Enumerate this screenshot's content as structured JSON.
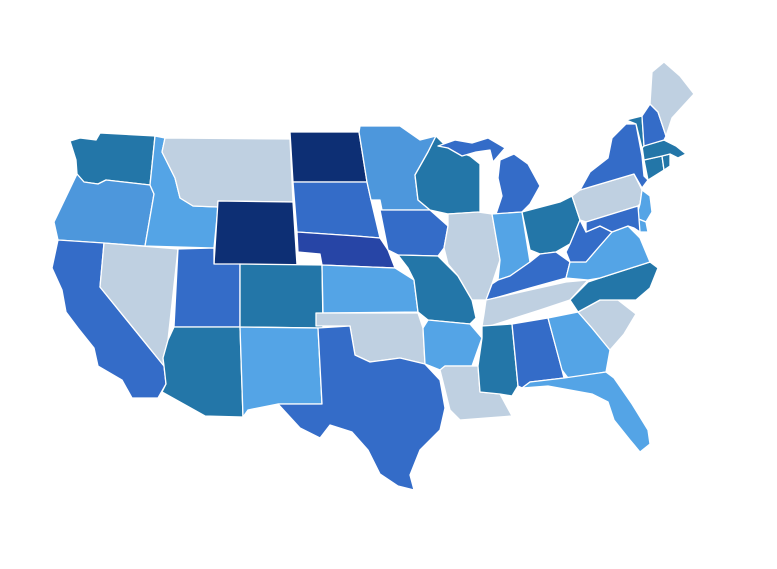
{
  "map": {
    "type": "choropleth",
    "region": "United States",
    "palette": {
      "navy": "#0d2f74",
      "indigo": "#2745a6",
      "blue": "#346cc8",
      "teal": "#2376a8",
      "medium": "#4d97dc",
      "light": "#54a4e6",
      "gray": "#bfd0e1"
    },
    "states": [
      {
        "id": "WA",
        "fill": "teal"
      },
      {
        "id": "OR",
        "fill": "medium"
      },
      {
        "id": "CA",
        "fill": "blue"
      },
      {
        "id": "ID",
        "fill": "light"
      },
      {
        "id": "NV",
        "fill": "gray"
      },
      {
        "id": "MT",
        "fill": "gray"
      },
      {
        "id": "WY",
        "fill": "navy"
      },
      {
        "id": "UT",
        "fill": "blue"
      },
      {
        "id": "AZ",
        "fill": "teal"
      },
      {
        "id": "CO",
        "fill": "teal"
      },
      {
        "id": "NM",
        "fill": "light"
      },
      {
        "id": "ND",
        "fill": "navy"
      },
      {
        "id": "SD",
        "fill": "blue"
      },
      {
        "id": "NE",
        "fill": "indigo"
      },
      {
        "id": "KS",
        "fill": "light"
      },
      {
        "id": "OK",
        "fill": "gray"
      },
      {
        "id": "TX",
        "fill": "blue"
      },
      {
        "id": "MN",
        "fill": "medium"
      },
      {
        "id": "IA",
        "fill": "blue"
      },
      {
        "id": "MO",
        "fill": "teal"
      },
      {
        "id": "AR",
        "fill": "light"
      },
      {
        "id": "LA",
        "fill": "gray"
      },
      {
        "id": "WI",
        "fill": "teal"
      },
      {
        "id": "IL",
        "fill": "gray"
      },
      {
        "id": "MI",
        "fill": "blue"
      },
      {
        "id": "IN",
        "fill": "light"
      },
      {
        "id": "OH",
        "fill": "teal"
      },
      {
        "id": "KY",
        "fill": "blue"
      },
      {
        "id": "TN",
        "fill": "gray"
      },
      {
        "id": "MS",
        "fill": "teal"
      },
      {
        "id": "AL",
        "fill": "blue"
      },
      {
        "id": "GA",
        "fill": "light"
      },
      {
        "id": "FL",
        "fill": "light"
      },
      {
        "id": "SC",
        "fill": "gray"
      },
      {
        "id": "NC",
        "fill": "teal"
      },
      {
        "id": "VA",
        "fill": "light"
      },
      {
        "id": "WV",
        "fill": "blue"
      },
      {
        "id": "PA",
        "fill": "gray"
      },
      {
        "id": "NY",
        "fill": "blue"
      },
      {
        "id": "NJ",
        "fill": "light"
      },
      {
        "id": "DE",
        "fill": "light"
      },
      {
        "id": "MD",
        "fill": "blue"
      },
      {
        "id": "CT",
        "fill": "teal"
      },
      {
        "id": "RI",
        "fill": "teal"
      },
      {
        "id": "MA",
        "fill": "teal"
      },
      {
        "id": "VT",
        "fill": "teal"
      },
      {
        "id": "NH",
        "fill": "blue"
      },
      {
        "id": "ME",
        "fill": "gray"
      }
    ]
  }
}
